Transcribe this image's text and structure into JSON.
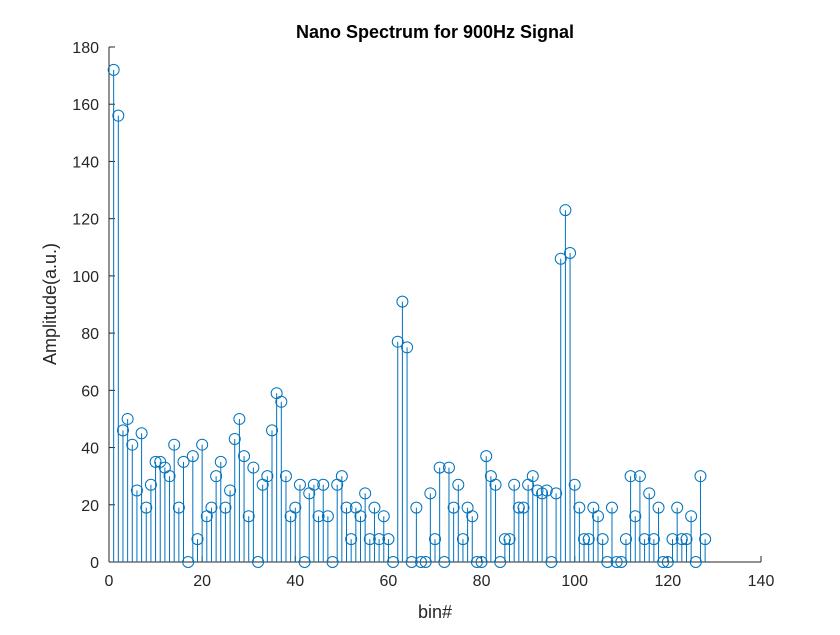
{
  "chart_data": {
    "type": "stem",
    "title": "Nano Spectrum for 900Hz Signal",
    "xlabel": "bin#",
    "ylabel": "Amplitude(a.u.)",
    "xlim": [
      0,
      140
    ],
    "ylim": [
      0,
      180
    ],
    "xticks": [
      "0",
      "20",
      "40",
      "60",
      "80",
      "100",
      "120",
      "140"
    ],
    "yticks": [
      "0",
      "20",
      "40",
      "60",
      "80",
      "100",
      "120",
      "140",
      "160",
      "180"
    ],
    "grid": false,
    "legend": "none",
    "color": "#0072BD",
    "series": [
      {
        "x": [
          1,
          2,
          3,
          4,
          5,
          6,
          7,
          8,
          9,
          10,
          11,
          12,
          13,
          14,
          15,
          16,
          17,
          18,
          19,
          20,
          21,
          22,
          23,
          24,
          25,
          26,
          27,
          28,
          29,
          30,
          31,
          32,
          33,
          34,
          35,
          36,
          37,
          38,
          39,
          40,
          41,
          42,
          43,
          44,
          45,
          46,
          47,
          48,
          49,
          50,
          51,
          52,
          53,
          54,
          55,
          56,
          57,
          58,
          59,
          60,
          61,
          62,
          63,
          64,
          65,
          66,
          67,
          68,
          69,
          70,
          71,
          72,
          73,
          74,
          75,
          76,
          77,
          78,
          79,
          80,
          81,
          82,
          83,
          84,
          85,
          86,
          87,
          88,
          89,
          90,
          91,
          92,
          93,
          94,
          95,
          96,
          97,
          98,
          99,
          100,
          101,
          102,
          103,
          104,
          105,
          106,
          107,
          108,
          109,
          110,
          111,
          112,
          113,
          114,
          115,
          116,
          117,
          118,
          119,
          120,
          121,
          122,
          123,
          124,
          125,
          126,
          127,
          128
        ],
        "y": [
          172,
          156,
          46,
          50,
          41,
          25,
          45,
          19,
          27,
          35,
          35,
          33,
          30,
          41,
          19,
          35,
          0,
          37,
          8,
          41,
          16,
          19,
          30,
          35,
          19,
          25,
          43,
          50,
          37,
          16,
          33,
          0,
          27,
          30,
          46,
          59,
          56,
          30,
          16,
          19,
          27,
          0,
          24,
          27,
          16,
          27,
          16,
          0,
          27,
          30,
          19,
          8,
          19,
          16,
          24,
          8,
          19,
          8,
          16,
          8,
          0,
          77,
          91,
          75,
          0,
          19,
          0,
          0,
          24,
          8,
          33,
          0,
          33,
          19,
          27,
          8,
          19,
          16,
          0,
          0,
          37,
          30,
          27,
          0,
          8,
          8,
          27,
          19,
          19,
          27,
          30,
          25,
          24,
          25,
          0,
          24,
          106,
          123,
          108,
          27,
          19,
          8,
          8,
          19,
          16,
          8,
          0,
          19,
          0,
          0,
          8,
          30,
          16,
          30,
          8,
          24,
          8,
          19,
          0,
          0,
          8,
          19,
          8,
          8,
          16,
          0,
          30,
          8
        ]
      }
    ]
  }
}
